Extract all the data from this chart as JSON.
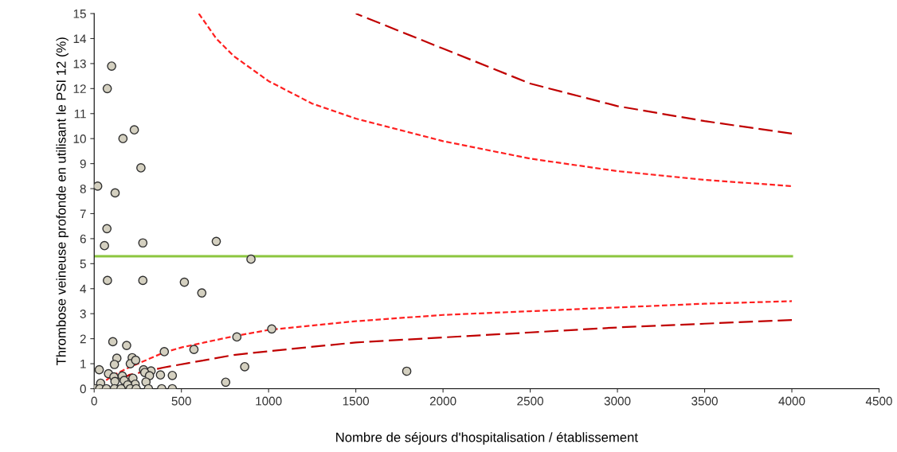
{
  "chart_data": {
    "type": "scatter",
    "xlabel": "Nombre de séjours d'hospitalisation / établissement",
    "ylabel": "Thrombose veineuse profonde en utilisant le PSI 12 (%)",
    "xlim": [
      0,
      4500
    ],
    "xticks": [
      0,
      500,
      1000,
      1500,
      2000,
      2500,
      3000,
      3500,
      4000,
      4500
    ],
    "ylim": [
      0,
      15
    ],
    "yticks": [
      0,
      1,
      2,
      3,
      4,
      5,
      6,
      7,
      8,
      9,
      10,
      11,
      12,
      13,
      14,
      15
    ],
    "grid": false,
    "series": [
      {
        "marker": "circle",
        "color": "#d4d0c0",
        "x": [
          100,
          75,
          230,
          165,
          268,
          20,
          120,
          73,
          59,
          279,
          700,
          899,
          76,
          279,
          517,
          617,
          1018,
          818,
          107,
          186,
          402,
          572,
          130,
          218,
          116,
          207,
          238,
          863,
          29,
          82,
          283,
          326,
          290,
          380,
          448,
          161,
          113,
          317,
          222,
          119,
          172,
          37,
          235,
          297,
          754,
          192,
          1792,
          5,
          32,
          70,
          116,
          154,
          207,
          241,
          311,
          387,
          448
        ],
        "values": [
          12.9,
          12.0,
          10.35,
          10.0,
          8.83,
          8.1,
          7.83,
          6.4,
          5.72,
          5.83,
          5.89,
          5.18,
          4.33,
          4.33,
          4.26,
          3.83,
          2.39,
          2.07,
          1.88,
          1.73,
          1.48,
          1.57,
          1.22,
          1.24,
          0.97,
          1.0,
          1.14,
          0.88,
          0.76,
          0.6,
          0.76,
          0.71,
          0.65,
          0.55,
          0.53,
          0.51,
          0.47,
          0.52,
          0.42,
          0.29,
          0.33,
          0.22,
          0.18,
          0.27,
          0.26,
          0.15,
          0.7,
          0,
          0,
          0,
          0,
          0,
          0,
          0,
          0,
          0,
          0
        ]
      },
      {
        "type": "line",
        "line_style": "solid",
        "marker": "none",
        "color": "#8cc63f",
        "x": [
          0,
          4000
        ],
        "values": [
          5.3,
          5.3
        ]
      },
      {
        "type": "line",
        "line_style": "dotted",
        "marker": "none",
        "color": "#ff2020",
        "x": [
          600,
          700,
          800,
          1000,
          1250,
          1500,
          2000,
          2500,
          3000,
          3500,
          4000
        ],
        "values": [
          15,
          14.0,
          13.3,
          12.3,
          11.4,
          10.8,
          9.9,
          9.2,
          8.7,
          8.35,
          8.1
        ]
      },
      {
        "type": "line",
        "line_style": "dotted",
        "marker": "none",
        "color": "#ff2020",
        "x": [
          32,
          100,
          200,
          400,
          500,
          600,
          800,
          1000,
          1500,
          2000,
          2500,
          3000,
          3500,
          4000
        ],
        "values": [
          0.15,
          0.5,
          0.85,
          1.45,
          1.65,
          1.8,
          2.1,
          2.35,
          2.7,
          2.95,
          3.1,
          3.25,
          3.4,
          3.5
        ]
      },
      {
        "type": "line",
        "line_style": "dashed",
        "marker": "none",
        "color": "#c00000",
        "x": [
          1500,
          1750,
          2000,
          2500,
          3000,
          3500,
          4000
        ],
        "values": [
          15,
          14.3,
          13.6,
          12.2,
          11.3,
          10.7,
          10.2
        ]
      },
      {
        "type": "line",
        "line_style": "dashed",
        "marker": "none",
        "color": "#c00000",
        "x": [
          146,
          200,
          400,
          600,
          800,
          1000,
          1500,
          2000,
          2500,
          3000,
          3500,
          4000
        ],
        "values": [
          0.35,
          0.55,
          0.85,
          1.1,
          1.35,
          1.5,
          1.85,
          2.05,
          2.25,
          2.45,
          2.6,
          2.75
        ]
      }
    ]
  }
}
